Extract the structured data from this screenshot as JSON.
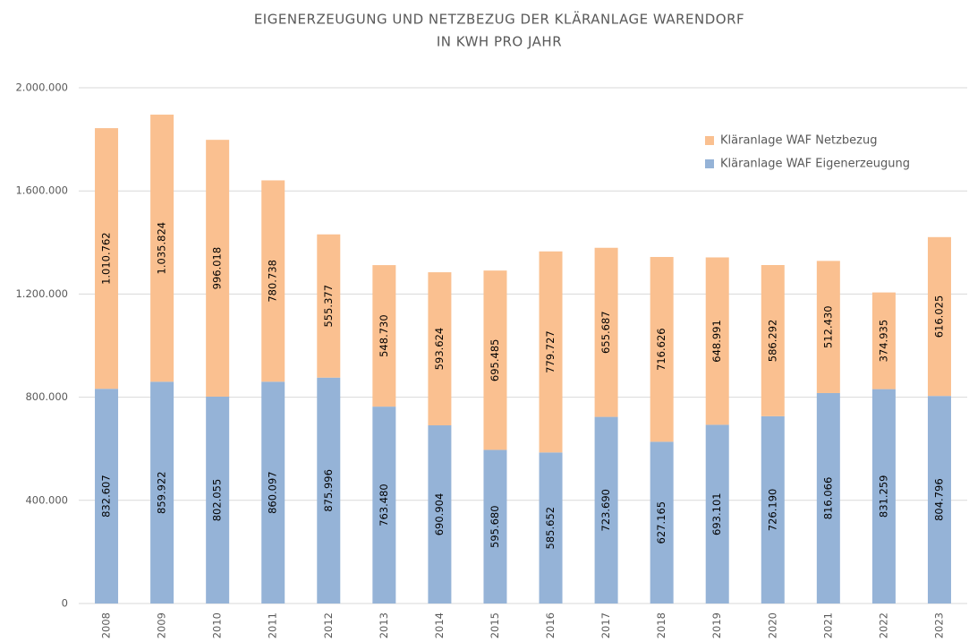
{
  "chart_data": {
    "type": "stacked_bar",
    "title": "EIGENERZEUGUNG  UND NETZBEZUG  DER KLÄRANLAGE  WARENDORF",
    "subtitle": "IN KWH PRO JAHR",
    "categories": [
      "2008",
      "2009",
      "2010",
      "2011",
      "2012",
      "2013",
      "2014",
      "2015",
      "2016",
      "2017",
      "2018",
      "2019",
      "2020",
      "2021",
      "2022",
      "2023"
    ],
    "series": [
      {
        "name": "Kläranlage  WAF Eigenerzeugung",
        "color": "#95b3d7",
        "values": [
          832607,
          859922,
          802055,
          860097,
          875996,
          763480,
          690904,
          595680,
          585652,
          723690,
          627165,
          693101,
          726190,
          816066,
          831259,
          804796
        ],
        "value_labels": [
          "832.607",
          "859.922",
          "802.055",
          "860.097",
          "875.996",
          "763.480",
          "690.904",
          "595.680",
          "585.652",
          "723.690",
          "627.165",
          "693.101",
          "726.190",
          "816.066",
          "831.259",
          "804.796"
        ]
      },
      {
        "name": "Kläranlage  WAF Netzbezug",
        "color": "#fac090",
        "values": [
          1010762,
          1035824,
          996018,
          780738,
          555377,
          548730,
          593624,
          695485,
          779727,
          655687,
          716626,
          648991,
          586292,
          512430,
          374935,
          616025
        ],
        "value_labels": [
          "1.010.762",
          "1.035.824",
          "996.018",
          "780.738",
          "555.377",
          "548.730",
          "593.624",
          "695.485",
          "779.727",
          "655.687",
          "716.626",
          "648.991",
          "586.292",
          "512.430",
          "374.935",
          "616.025"
        ]
      }
    ],
    "ylim": [
      0,
      2000000
    ],
    "yticks": [
      0,
      {
        "value": 400000,
        "label": "400.000"
      },
      {
        "value": 800000,
        "label": "800.000"
      },
      {
        "value": 1200000,
        "label": "1.200.000"
      },
      {
        "value": 1600000,
        "label": "1.600.000"
      },
      {
        "value": 2000000,
        "label": "2.000.000"
      }
    ],
    "grid": true,
    "legend": "upper right"
  }
}
